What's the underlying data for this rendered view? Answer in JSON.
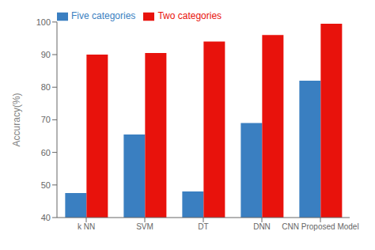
{
  "chart_data": {
    "type": "bar",
    "categories": [
      "k NN",
      "SVM",
      "DT",
      "DNN",
      "CNN Proposed Model"
    ],
    "series": [
      {
        "name": "Five categories",
        "color": "#3a7fc1",
        "values": [
          47.5,
          65.5,
          48.0,
          69.0,
          82.0
        ]
      },
      {
        "name": "Two categories",
        "color": "#e8120c",
        "values": [
          90.0,
          90.5,
          94.0,
          96.0,
          99.5
        ]
      }
    ],
    "ylabel": "Accuracy(%)",
    "ylim": [
      40,
      100
    ],
    "yticks": [
      40,
      50,
      60,
      70,
      80,
      90,
      100
    ],
    "legend": "upper left",
    "grid": false
  }
}
